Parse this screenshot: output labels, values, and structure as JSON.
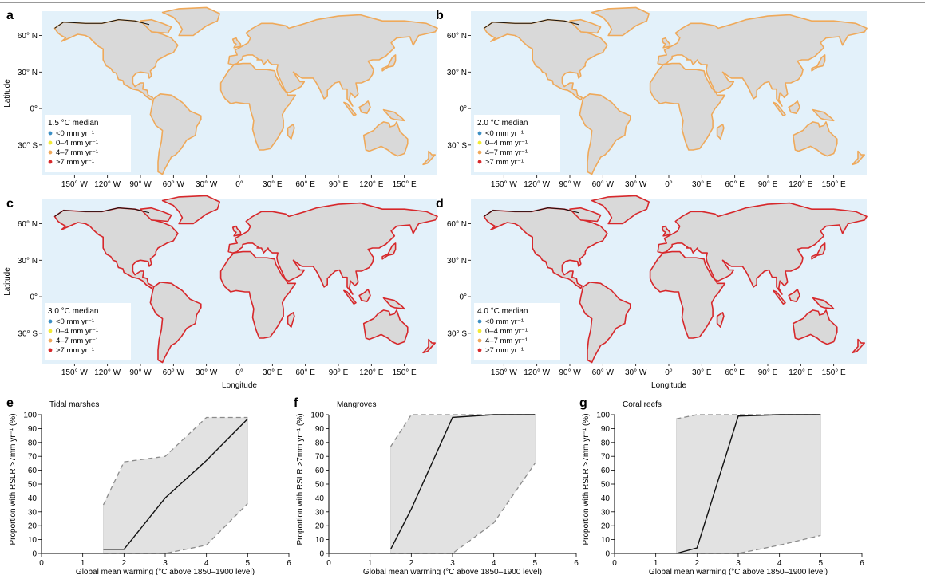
{
  "map_panels": [
    {
      "letter": "a",
      "legend_title": "1.5 °C median",
      "legend_items": [
        {
          "label": "<0 mm yr⁻¹",
          "color": "#3c8fc4"
        },
        {
          "label": "0–4 mm yr⁻¹",
          "color": "#f2ea34"
        },
        {
          "label": "4–7 mm yr⁻¹",
          "color": "#efa95a"
        },
        {
          "label": ">7 mm yr⁻¹",
          "color": "#d7282b"
        }
      ],
      "ylabel": "Latitude",
      "xlabel": "",
      "dominant_color": "#efa95a"
    },
    {
      "letter": "b",
      "legend_title": "2.0 °C median",
      "legend_items": [
        {
          "label": "<0 mm yr⁻¹",
          "color": "#3c8fc4"
        },
        {
          "label": "0–4 mm yr⁻¹",
          "color": "#f2ea34"
        },
        {
          "label": "4–7 mm yr⁻¹",
          "color": "#efa95a"
        },
        {
          "label": ">7 mm yr⁻¹",
          "color": "#d7282b"
        }
      ],
      "ylabel": "",
      "xlabel": "",
      "dominant_color": "#efa95a"
    },
    {
      "letter": "c",
      "legend_title": "3.0 °C median",
      "legend_items": [
        {
          "label": "<0 mm yr⁻¹",
          "color": "#3c8fc4"
        },
        {
          "label": "0–4 mm yr⁻¹",
          "color": "#f2ea34"
        },
        {
          "label": "4–7 mm yr⁻¹",
          "color": "#efa95a"
        },
        {
          "label": ">7 mm yr⁻¹",
          "color": "#d7282b"
        }
      ],
      "ylabel": "Latitude",
      "xlabel": "Longitude",
      "dominant_color": "#d7282b"
    },
    {
      "letter": "d",
      "legend_title": "4.0 °C median",
      "legend_items": [
        {
          "label": "<0 mm yr⁻¹",
          "color": "#3c8fc4"
        },
        {
          "label": "0–4 mm yr⁻¹",
          "color": "#f2ea34"
        },
        {
          "label": "4–7 mm yr⁻¹",
          "color": "#efa95a"
        },
        {
          "label": ">7 mm yr⁻¹",
          "color": "#d7282b"
        }
      ],
      "ylabel": "",
      "xlabel": "Longitude",
      "dominant_color": "#d7282b"
    }
  ],
  "map_axes": {
    "lat_ticks": [
      {
        "value": 60,
        "label": "60° N"
      },
      {
        "value": 30,
        "label": "30° N"
      },
      {
        "value": 0,
        "label": "0°"
      },
      {
        "value": -30,
        "label": "30° S"
      }
    ],
    "lon_ticks": [
      {
        "value": -150,
        "label": "150° W"
      },
      {
        "value": -120,
        "label": "120° W"
      },
      {
        "value": -90,
        "label": "90° W"
      },
      {
        "value": -60,
        "label": "60° W"
      },
      {
        "value": -30,
        "label": "30° W"
      },
      {
        "value": 0,
        "label": "0°"
      },
      {
        "value": 30,
        "label": "30° E"
      },
      {
        "value": 60,
        "label": "60° E"
      },
      {
        "value": 90,
        "label": "90° E"
      },
      {
        "value": 120,
        "label": "120° E"
      },
      {
        "value": 150,
        "label": "150° E"
      }
    ],
    "lon_range": [
      -180,
      180
    ],
    "lat_range": [
      -55,
      80
    ],
    "ocean_color": "#e3f1fa",
    "land_color": "#d9d9d9"
  },
  "chart_data": [
    {
      "letter": "e",
      "type": "area",
      "title": "Tidal marshes",
      "xlabel": "Global mean warming (°C above 1850–1900 level)",
      "ylabel": "Proportion with RSLR >7mm yr⁻¹ (%)",
      "xlim": [
        0,
        6
      ],
      "ylim": [
        0,
        100
      ],
      "xticks": [
        0,
        1,
        2,
        3,
        4,
        5,
        6
      ],
      "yticks": [
        0,
        10,
        20,
        30,
        40,
        50,
        60,
        70,
        80,
        90,
        100
      ],
      "median": {
        "x": [
          1.5,
          2,
          3,
          4,
          5
        ],
        "y": [
          3,
          3,
          40,
          67,
          97
        ]
      },
      "upper": {
        "x": [
          1.5,
          2,
          3,
          4,
          5
        ],
        "y": [
          35,
          66,
          70,
          98,
          98
        ]
      },
      "lower": {
        "x": [
          1.5,
          2,
          3,
          4,
          5
        ],
        "y": [
          0,
          0,
          0,
          6,
          36
        ]
      }
    },
    {
      "letter": "f",
      "type": "area",
      "title": "Mangroves",
      "xlabel": "Global mean warming (°C above 1850–1900 level)",
      "ylabel": "Proportion with RSLR >7mm yr⁻¹ (%)",
      "xlim": [
        0,
        6
      ],
      "ylim": [
        0,
        100
      ],
      "xticks": [
        0,
        1,
        2,
        3,
        4,
        5,
        6
      ],
      "yticks": [
        0,
        10,
        20,
        30,
        40,
        50,
        60,
        70,
        80,
        90,
        100
      ],
      "median": {
        "x": [
          1.5,
          2,
          3,
          4,
          5
        ],
        "y": [
          3,
          32,
          98,
          100,
          100
        ]
      },
      "upper": {
        "x": [
          1.5,
          2,
          3,
          4,
          5
        ],
        "y": [
          77,
          100,
          100,
          100,
          100
        ]
      },
      "lower": {
        "x": [
          1.5,
          2,
          3,
          4,
          5
        ],
        "y": [
          0,
          0,
          0,
          22,
          65
        ]
      }
    },
    {
      "letter": "g",
      "type": "area",
      "title": "Coral reefs",
      "xlabel": "Global mean warming (°C above 1850–1900 level)",
      "ylabel": "Proportion with RSLR >7mm yr⁻¹ (%)",
      "xlim": [
        0,
        6
      ],
      "ylim": [
        0,
        100
      ],
      "xticks": [
        0,
        1,
        2,
        3,
        4,
        5,
        6
      ],
      "yticks": [
        0,
        10,
        20,
        30,
        40,
        50,
        60,
        70,
        80,
        90,
        100
      ],
      "median": {
        "x": [
          1.5,
          2,
          3,
          4,
          5
        ],
        "y": [
          0,
          4,
          99,
          100,
          100
        ]
      },
      "upper": {
        "x": [
          1.5,
          2,
          3,
          4,
          5
        ],
        "y": [
          97,
          100,
          100,
          100,
          100
        ]
      },
      "lower": {
        "x": [
          1.5,
          2,
          3,
          4,
          5
        ],
        "y": [
          0,
          0,
          0,
          6,
          13
        ]
      }
    }
  ]
}
